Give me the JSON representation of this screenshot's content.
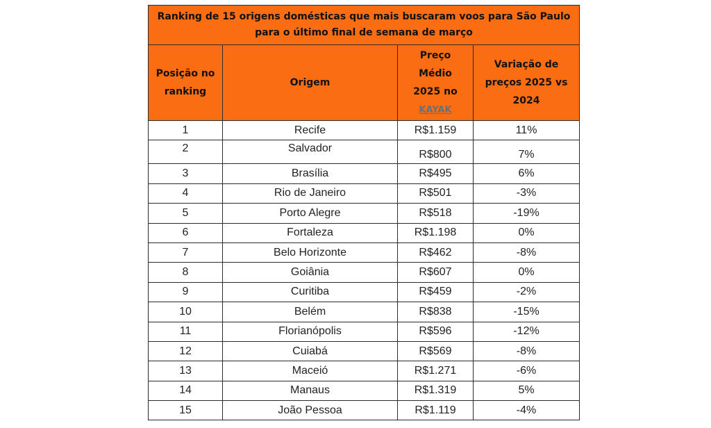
{
  "table": {
    "title": "Ranking de 15 origens domésticas que mais buscaram voos para São Paulo para o último final de semana de março",
    "headers": {
      "position": "Posição no ranking",
      "origin": "Origem",
      "price_prefix": "Preço Médio 2025 no",
      "price_link": "KAYAK",
      "variation": "Variação de preços 2025 vs 2024"
    },
    "colors": {
      "header_bg": "#fb6d12",
      "border": "#2b2b2b"
    },
    "rows": [
      {
        "position": "1",
        "origin": "Recife",
        "price": "R$1.159",
        "variation": "11%"
      },
      {
        "position": "2",
        "origin": "Salvador",
        "price": "R$800",
        "variation": "7%"
      },
      {
        "position": "3",
        "origin": "Brasília",
        "price": "R$495",
        "variation": "6%"
      },
      {
        "position": "4",
        "origin": "Rio de Janeiro",
        "price": "R$501",
        "variation": "-3%"
      },
      {
        "position": "5",
        "origin": "Porto Alegre",
        "price": "R$518",
        "variation": "-19%"
      },
      {
        "position": "6",
        "origin": "Fortaleza",
        "price": "R$1.198",
        "variation": "0%"
      },
      {
        "position": "7",
        "origin": "Belo Horizonte",
        "price": "R$462",
        "variation": "-8%"
      },
      {
        "position": "8",
        "origin": "Goiânia",
        "price": "R$607",
        "variation": "0%"
      },
      {
        "position": "9",
        "origin": "Curitiba",
        "price": "R$459",
        "variation": "-2%"
      },
      {
        "position": "10",
        "origin": "Belém",
        "price": "R$838",
        "variation": "-15%"
      },
      {
        "position": "11",
        "origin": "Florianópolis",
        "price": "R$596",
        "variation": "-12%"
      },
      {
        "position": "12",
        "origin": "Cuiabá",
        "price": "R$569",
        "variation": "-8%"
      },
      {
        "position": "13",
        "origin": "Maceió",
        "price": "R$1.271",
        "variation": "-6%"
      },
      {
        "position": "14",
        "origin": "Manaus",
        "price": "R$1.319",
        "variation": "5%"
      },
      {
        "position": "15",
        "origin": "João Pessoa",
        "price": "R$1.119",
        "variation": "-4%"
      }
    ]
  }
}
